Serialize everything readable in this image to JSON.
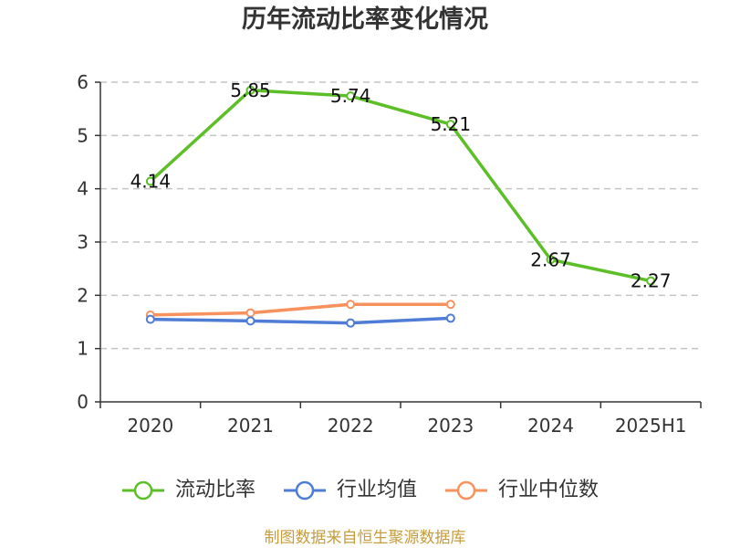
{
  "chart_data": {
    "type": "line",
    "title": "历年流动比率变化情况",
    "categories": [
      "2020",
      "2021",
      "2022",
      "2023",
      "2024",
      "2025H1"
    ],
    "ylim": [
      0,
      6
    ],
    "yticks": [
      0,
      1,
      2,
      3,
      4,
      5,
      6
    ],
    "grid": true,
    "legend_position": "bottom",
    "series": [
      {
        "name": "流动比率",
        "color": "#5cbf27",
        "values": [
          4.14,
          5.85,
          5.74,
          5.21,
          2.67,
          2.27
        ],
        "data_labels": [
          "4.14",
          "5.85",
          "5.74",
          "5.21",
          "2.67",
          "2.27"
        ]
      },
      {
        "name": "行业均值",
        "color": "#4f7dd6",
        "values": [
          1.55,
          1.52,
          1.48,
          1.57,
          null,
          null
        ]
      },
      {
        "name": "行业中位数",
        "color": "#f7915d",
        "values": [
          1.63,
          1.67,
          1.83,
          1.83,
          null,
          null
        ]
      }
    ]
  },
  "footer": {
    "source_note": "制图数据来自恒生聚源数据库",
    "color": "#c69c3d"
  }
}
